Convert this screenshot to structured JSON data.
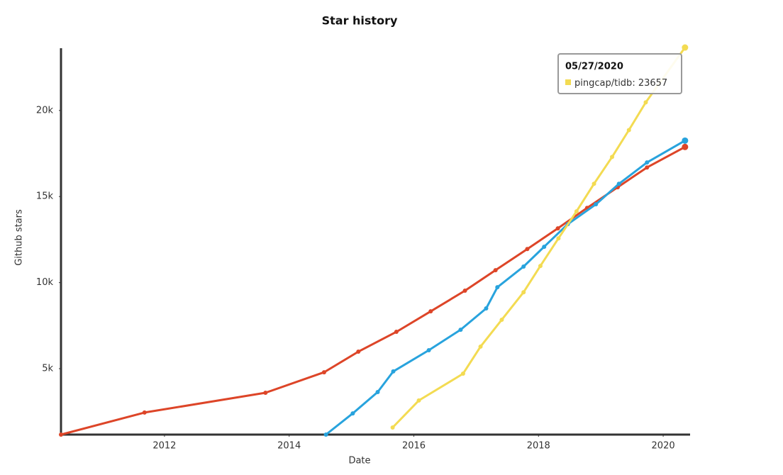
{
  "chart_data": {
    "type": "line",
    "title": "Star history",
    "x_label": "Date",
    "y_label": "Github stars",
    "xlim": [
      2010.34,
      2020.42
    ],
    "xticks": [
      2012,
      2014,
      2016,
      2018,
      2020
    ],
    "ylim": [
      1170,
      23700
    ],
    "yticks": [
      {
        "value": 5000,
        "label": "5k"
      },
      {
        "value": 10000,
        "label": "10k"
      },
      {
        "value": 15000,
        "label": "15k"
      },
      {
        "value": 20000,
        "label": "20k"
      }
    ],
    "grid": false,
    "series": [
      {
        "color": "#dd4528",
        "x": [
          2010.34,
          2011.68,
          2013.62,
          2014.56,
          2015.11,
          2015.72,
          2016.27,
          2016.82,
          2017.31,
          2017.82,
          2018.31,
          2018.78,
          2019.27,
          2019.74,
          2020.35
        ],
        "values": [
          1170,
          2450,
          3600,
          4790,
          5990,
          7140,
          8330,
          9530,
          10720,
          11950,
          13150,
          14340,
          15540,
          16690,
          17880
        ]
      },
      {
        "color": "#28a3dd",
        "x": [
          2014.59,
          2015.02,
          2015.42,
          2015.67,
          2016.24,
          2016.75,
          2017.16,
          2017.34,
          2017.76,
          2018.09,
          2018.47,
          2018.92,
          2019.29,
          2019.74,
          2020.35
        ],
        "values": [
          1170,
          2400,
          3640,
          4840,
          6070,
          7260,
          8500,
          9730,
          10930,
          12080,
          13400,
          14550,
          15740,
          16980,
          18250
        ]
      },
      {
        "name": "pingcap/tidb",
        "color": "#f3db52",
        "x": [
          2015.66,
          2016.08,
          2016.79,
          2017.07,
          2017.41,
          2017.76,
          2018.03,
          2018.32,
          2018.61,
          2018.89,
          2019.18,
          2019.45,
          2019.72,
          2020.35
        ],
        "values": [
          1580,
          3150,
          4710,
          6280,
          7840,
          9440,
          10970,
          12570,
          14140,
          15740,
          17300,
          18860,
          20470,
          23657
        ]
      }
    ],
    "tooltip": {
      "date": "05/27/2020"
    }
  }
}
